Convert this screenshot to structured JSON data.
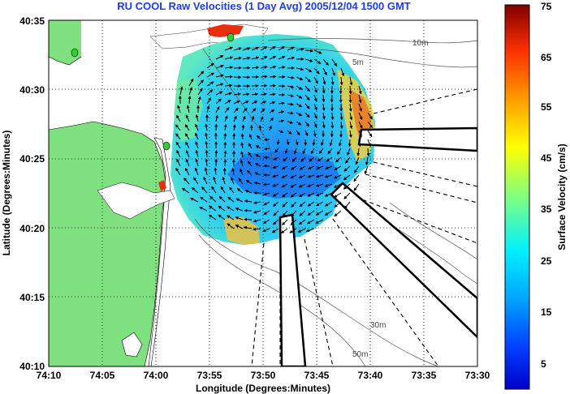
{
  "title": "RU COOL Raw Velocities (1 Day Avg) 2005/12/04 1500 GMT",
  "axes": {
    "xlabel": "Longitude (Degrees:Minutes)",
    "ylabel": "Latitude (Degrees:Minutes)",
    "x_ticks": [
      "74:10",
      "74:05",
      "74:00",
      "73:55",
      "73:50",
      "73:45",
      "73:40",
      "73:35",
      "73:30"
    ],
    "y_ticks": [
      "40:35",
      "40:30",
      "40:25",
      "40:20",
      "40:15",
      "40:10"
    ]
  },
  "colorbar": {
    "label": "Surface Velocity (cm/s)",
    "ticks": [
      "75",
      "65",
      "55",
      "45",
      "35",
      "25",
      "15",
      "5"
    ]
  },
  "isobaths": [
    "5m",
    "10m",
    "30m",
    "50m"
  ],
  "colors": {
    "land": "#7fe07f",
    "title": "#1f3cf5",
    "station": "#2fd02f"
  }
}
